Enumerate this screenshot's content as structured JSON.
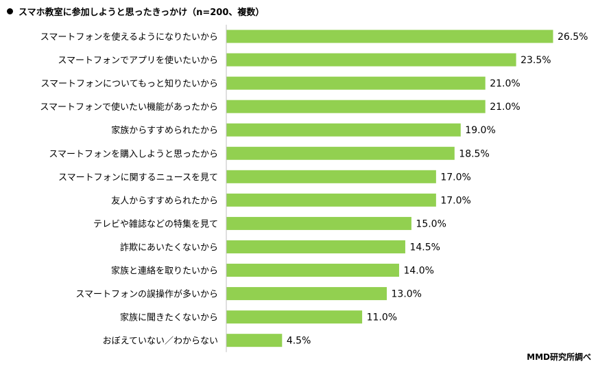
{
  "title": "スマホ教室に参加しようと思ったきっかけ（n=200、複数）",
  "source": "MMD研究所調べ",
  "colors": {
    "bar": "#92d050",
    "axis": "#bfbfbf",
    "text": "#000000"
  },
  "chart_data": {
    "type": "bar",
    "orientation": "horizontal",
    "title": "スマホ教室に参加しようと思ったきっかけ（n=200、複数）",
    "categories": [
      "スマートフォンを使えるようになりたいから",
      "スマートフォンでアプリを使いたいから",
      "スマートフォンについてもっと知りたいから",
      "スマートフォンで使いたい機能があったから",
      "家族からすすめられたから",
      "スマートフォンを購入しようと思ったから",
      "スマートフォンに関するニュースを見て",
      "友人からすすめられたから",
      "テレビや雑誌などの特集を見て",
      "詐欺にあいたくないから",
      "家族と連絡を取りたいから",
      "スマートフォンの誤操作が多いから",
      "家族に聞きたくないから",
      "おぼえていない／わからない"
    ],
    "values": [
      26.5,
      23.5,
      21.0,
      21.0,
      19.0,
      18.5,
      17.0,
      17.0,
      15.0,
      14.5,
      14.0,
      13.0,
      11.0,
      4.5
    ],
    "value_labels": [
      "26.5%",
      "23.5%",
      "21.0%",
      "21.0%",
      "19.0%",
      "18.5%",
      "17.0%",
      "17.0%",
      "15.0%",
      "14.5%",
      "14.0%",
      "13.0%",
      "11.0%",
      "4.5%"
    ],
    "xlim": [
      0,
      30
    ],
    "grid": false,
    "legend": "none"
  }
}
